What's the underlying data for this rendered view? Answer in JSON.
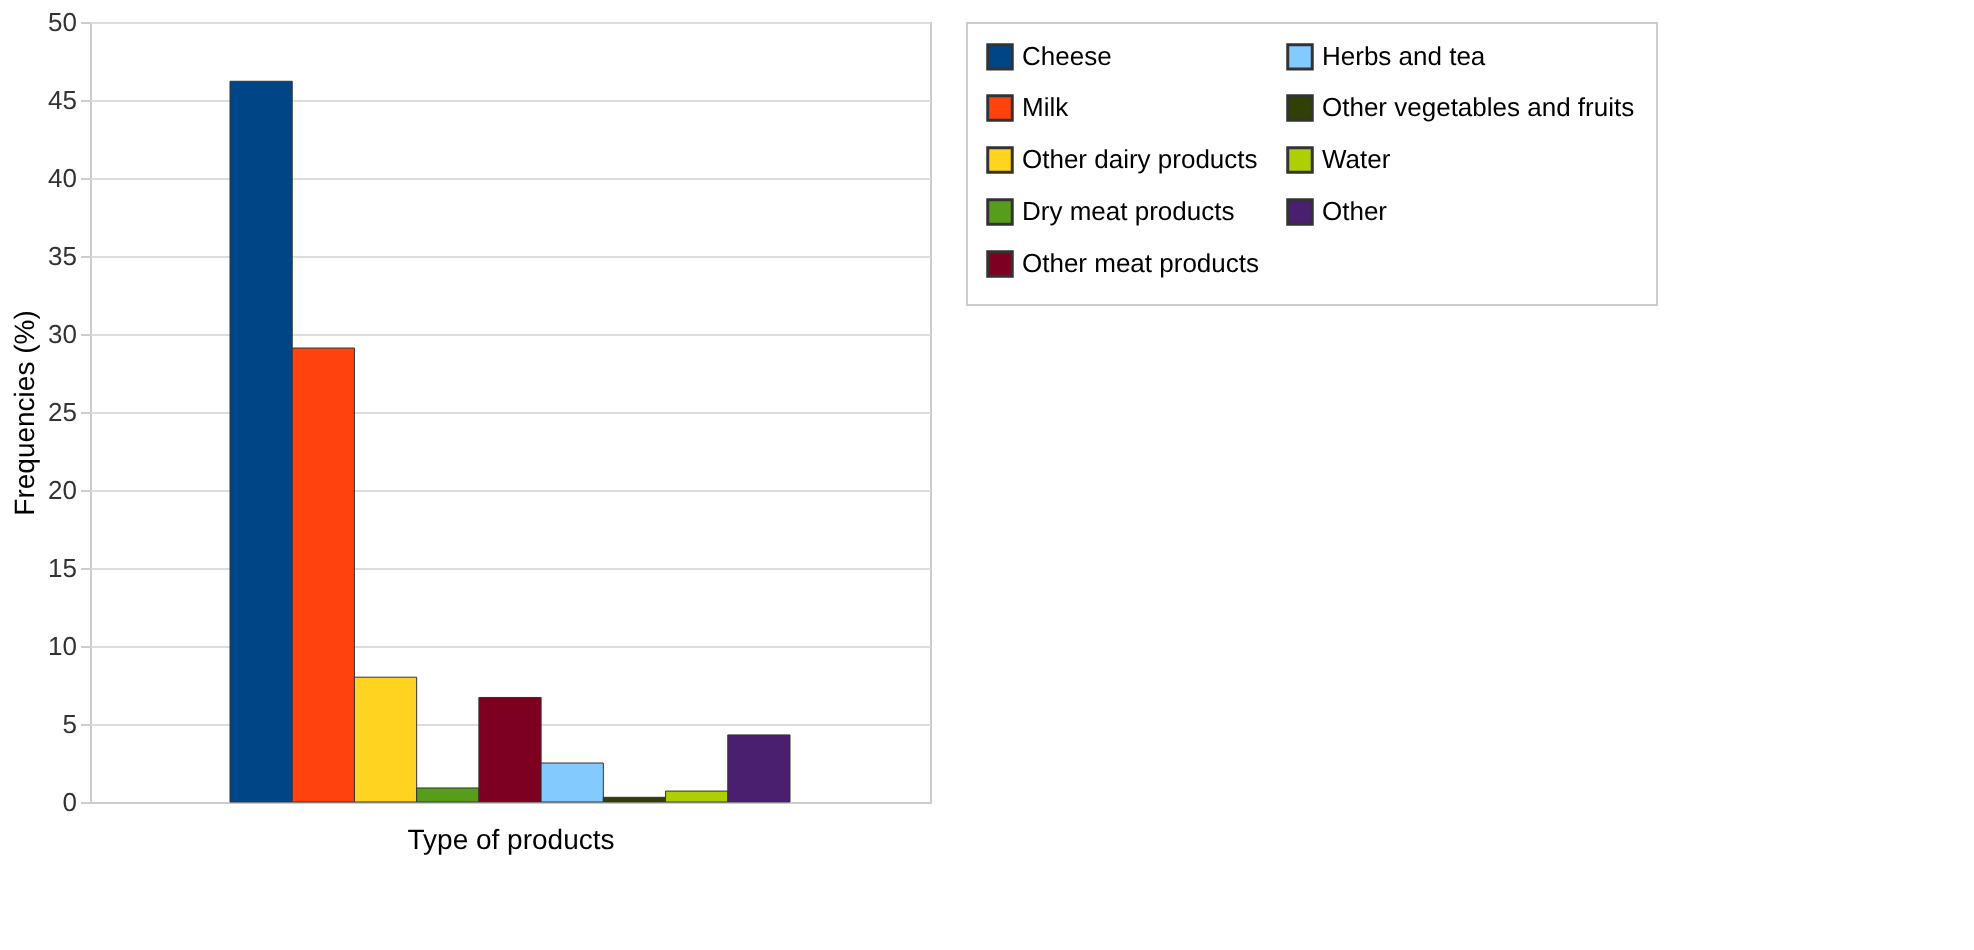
{
  "chart_data": {
    "type": "bar",
    "xlabel": "Type of products",
    "ylabel": "Frequencies (%)",
    "categories": [
      null
    ],
    "series": [
      {
        "name": "Cheese",
        "color": "#004586",
        "values": [
          46.2
        ]
      },
      {
        "name": "Milk",
        "color": "#ff420e",
        "values": [
          29.1
        ]
      },
      {
        "name": "Other dairy products",
        "color": "#ffd320",
        "values": [
          8.0
        ]
      },
      {
        "name": "Dry meat products",
        "color": "#579d1c",
        "values": [
          0.9
        ]
      },
      {
        "name": "Other meat products",
        "color": "#7e0021",
        "values": [
          6.7
        ]
      },
      {
        "name": "Herbs and tea",
        "color": "#83caff",
        "values": [
          2.5
        ]
      },
      {
        "name": "Other vegetables and fruits",
        "color": "#314004",
        "values": [
          0.3
        ]
      },
      {
        "name": "Water",
        "color": "#aecf00",
        "values": [
          0.7
        ]
      },
      {
        "name": "Other",
        "color": "#4b1f6f",
        "values": [
          4.3
        ]
      }
    ],
    "ylim": [
      0,
      50
    ],
    "yticks": [
      0,
      5,
      10,
      15,
      20,
      25,
      30,
      35,
      40,
      45,
      50
    ],
    "grid": "y",
    "legend": "right",
    "tick_labels": "y"
  }
}
